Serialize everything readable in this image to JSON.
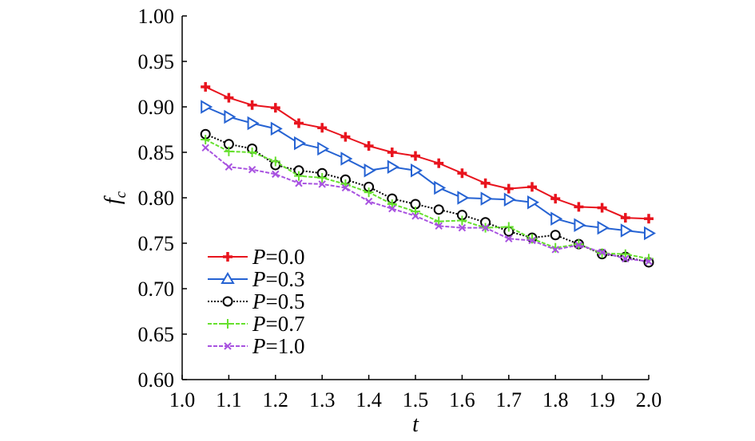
{
  "chart_data": {
    "type": "line",
    "title": "",
    "xlabel": "t",
    "ylabel_main": "f",
    "ylabel_sub": "c",
    "xlim": [
      1.0,
      2.0
    ],
    "ylim": [
      0.6,
      1.0
    ],
    "x_ticks": [
      "1.0",
      "1.1",
      "1.2",
      "1.3",
      "1.4",
      "1.5",
      "1.6",
      "1.7",
      "1.8",
      "1.9",
      "2.0"
    ],
    "y_ticks": [
      "0.60",
      "0.65",
      "0.70",
      "0.75",
      "0.80",
      "0.85",
      "0.90",
      "0.95",
      "1.00"
    ],
    "grid": false,
    "legend_position": "bottom-left",
    "x": [
      1.05,
      1.1,
      1.15,
      1.2,
      1.25,
      1.3,
      1.35,
      1.4,
      1.45,
      1.5,
      1.55,
      1.6,
      1.65,
      1.7,
      1.75,
      1.8,
      1.85,
      1.9,
      1.95,
      2.0
    ],
    "series": [
      {
        "name_var": "P",
        "name_val": "=0.0",
        "color": "#e8141e",
        "marker": "plus-bold",
        "dash": "",
        "values": [
          0.922,
          0.91,
          0.902,
          0.899,
          0.882,
          0.877,
          0.867,
          0.857,
          0.85,
          0.846,
          0.838,
          0.827,
          0.816,
          0.81,
          0.812,
          0.799,
          0.79,
          0.789,
          0.778,
          0.777
        ]
      },
      {
        "name_var": "P",
        "name_val": "=0.3",
        "color": "#2663d3",
        "marker": "triangle",
        "dash": "",
        "values": [
          0.9,
          0.889,
          0.882,
          0.876,
          0.86,
          0.854,
          0.843,
          0.83,
          0.834,
          0.83,
          0.811,
          0.8,
          0.799,
          0.798,
          0.795,
          0.777,
          0.77,
          0.767,
          0.764,
          0.761
        ]
      },
      {
        "name_var": "P",
        "name_val": "=0.5",
        "color": "#000000",
        "marker": "circle",
        "dash": "2,2",
        "values": [
          0.87,
          0.859,
          0.854,
          0.836,
          0.83,
          0.827,
          0.82,
          0.812,
          0.799,
          0.793,
          0.787,
          0.781,
          0.773,
          0.763,
          0.756,
          0.759,
          0.749,
          0.738,
          0.735,
          0.729
        ]
      },
      {
        "name_var": "P",
        "name_val": "=0.7",
        "color": "#66e02e",
        "marker": "plus",
        "dash": "5,2",
        "values": [
          0.864,
          0.851,
          0.85,
          0.84,
          0.824,
          0.822,
          0.815,
          0.806,
          0.793,
          0.785,
          0.774,
          0.775,
          0.767,
          0.768,
          0.755,
          0.745,
          0.749,
          0.739,
          0.738,
          0.733
        ]
      },
      {
        "name_var": "P",
        "name_val": "=1.0",
        "color": "#a852e0",
        "marker": "x",
        "dash": "5,2",
        "values": [
          0.855,
          0.834,
          0.831,
          0.826,
          0.816,
          0.815,
          0.811,
          0.796,
          0.788,
          0.78,
          0.769,
          0.767,
          0.767,
          0.755,
          0.753,
          0.743,
          0.748,
          0.74,
          0.733,
          0.73
        ]
      }
    ]
  }
}
